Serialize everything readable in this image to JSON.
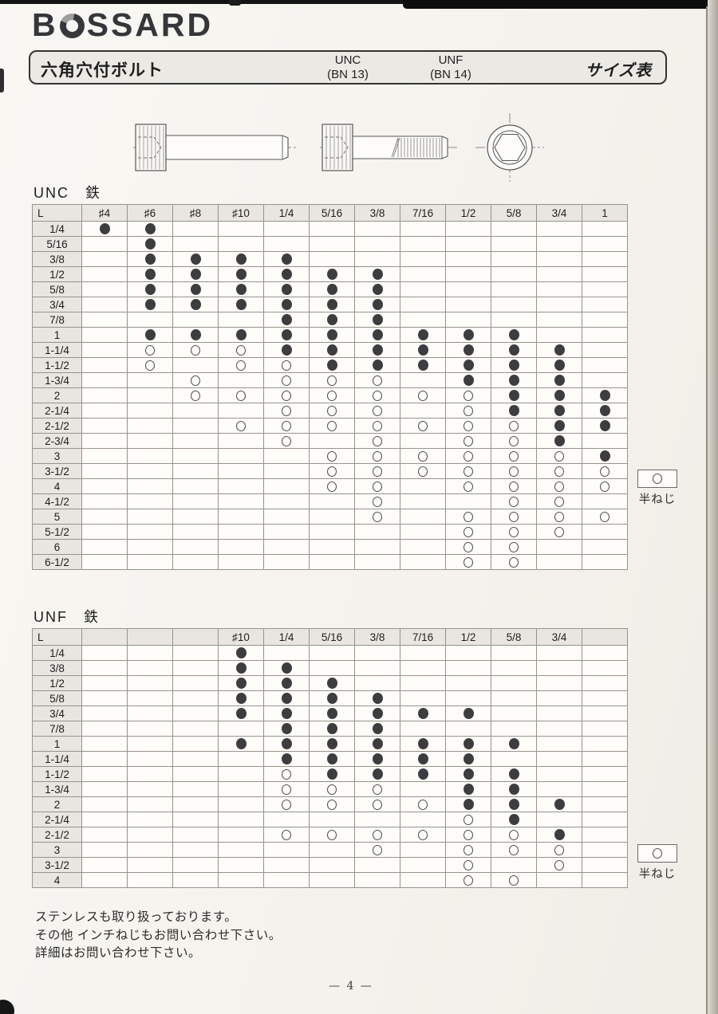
{
  "logo": {
    "b": "B",
    "rest": "SSARD"
  },
  "title_bar": {
    "product_name": "六角穴付ボルト",
    "unc_label": "UNC",
    "unc_code": "(BN 13)",
    "unf_label": "UNF",
    "unf_code": "(BN 14)",
    "sheet_label": "サイズ表"
  },
  "legend": {
    "symbol": "○",
    "label": "半ねじ"
  },
  "colors": {
    "dot": "#3d3d3f",
    "table_line": "#97938a",
    "header_bg": "#e8e6e0",
    "paper": "#f4f2ec"
  },
  "unc_table": {
    "section_title": "UNC　鉄",
    "corner_label": "L",
    "columns": [
      "♯4",
      "♯6",
      "♯8",
      "♯10",
      "1/4",
      "5/16",
      "3/8",
      "7/16",
      "1/2",
      "5/8",
      "3/4",
      "1"
    ],
    "rows": [
      {
        "label": "1/4",
        "cells": "FF.........."
      },
      {
        "label": "5/16",
        "cells": ".F.........."
      },
      {
        "label": "3/8",
        "cells": ".FFFF......."
      },
      {
        "label": "1/2",
        "cells": ".FFFFFF....."
      },
      {
        "label": "5/8",
        "cells": ".FFFFFF....."
      },
      {
        "label": "3/4",
        "cells": ".FFFFFF....."
      },
      {
        "label": "7/8",
        "cells": "....FFF....."
      },
      {
        "label": "1",
        "cells": ".FFFFFFFFF.."
      },
      {
        "label": "1-1/4",
        "cells": ".OOOFFFFFFF."
      },
      {
        "label": "1-1/2",
        "cells": ".O.OOFFFFFF."
      },
      {
        "label": "1-3/4",
        "cells": "..O.OOO.FFF."
      },
      {
        "label": "2",
        "cells": "..OOOOOOOFFF"
      },
      {
        "label": "2-1/4",
        "cells": "....OOO.OFFF"
      },
      {
        "label": "2-1/2",
        "cells": "...OOOOOOOFF"
      },
      {
        "label": "2-3/4",
        "cells": "....O.O.OOF."
      },
      {
        "label": "3",
        "cells": ".....OOOOOOF"
      },
      {
        "label": "3-1/2",
        "cells": ".....OOOOOOO"
      },
      {
        "label": "4",
        "cells": ".....OO.OOOO"
      },
      {
        "label": "4-1/2",
        "cells": "......O..OO."
      },
      {
        "label": "5",
        "cells": "......O.OOOO"
      },
      {
        "label": "5-1/2",
        "cells": "........OOO."
      },
      {
        "label": "6",
        "cells": "........OO.."
      },
      {
        "label": "6-1/2",
        "cells": "........OO.."
      }
    ]
  },
  "unf_table": {
    "section_title": "UNF　鉄",
    "corner_label": "L",
    "columns": [
      "",
      "",
      "",
      "♯10",
      "1/4",
      "5/16",
      "3/8",
      "7/16",
      "1/2",
      "5/8",
      "3/4",
      ""
    ],
    "rows": [
      {
        "label": "1/4",
        "cells": "...F........"
      },
      {
        "label": "3/8",
        "cells": "...FF......."
      },
      {
        "label": "1/2",
        "cells": "...FFF......"
      },
      {
        "label": "5/8",
        "cells": "...FFFF....."
      },
      {
        "label": "3/4",
        "cells": "...FFFFFF..."
      },
      {
        "label": "7/8",
        "cells": "....FFF....."
      },
      {
        "label": "1",
        "cells": "...FFFFFFF.."
      },
      {
        "label": "1-1/4",
        "cells": "....FFFFF..."
      },
      {
        "label": "1-1/2",
        "cells": "....OFFFFF.."
      },
      {
        "label": "1-3/4",
        "cells": "....OOO.FF.."
      },
      {
        "label": "2",
        "cells": "....OOOOFFF."
      },
      {
        "label": "2-1/4",
        "cells": "........OF.."
      },
      {
        "label": "2-1/2",
        "cells": "....OOOOOOF."
      },
      {
        "label": "3",
        "cells": "......O.OOO."
      },
      {
        "label": "3-1/2",
        "cells": "........O.O."
      },
      {
        "label": "4",
        "cells": "........OO.."
      }
    ]
  },
  "notes": [
    "ステンレスも取り扱っております。",
    "その他 インチねじもお問い合わせ下さい。",
    "詳細はお問い合わせ下さい。"
  ],
  "page_number": "— 4 —"
}
